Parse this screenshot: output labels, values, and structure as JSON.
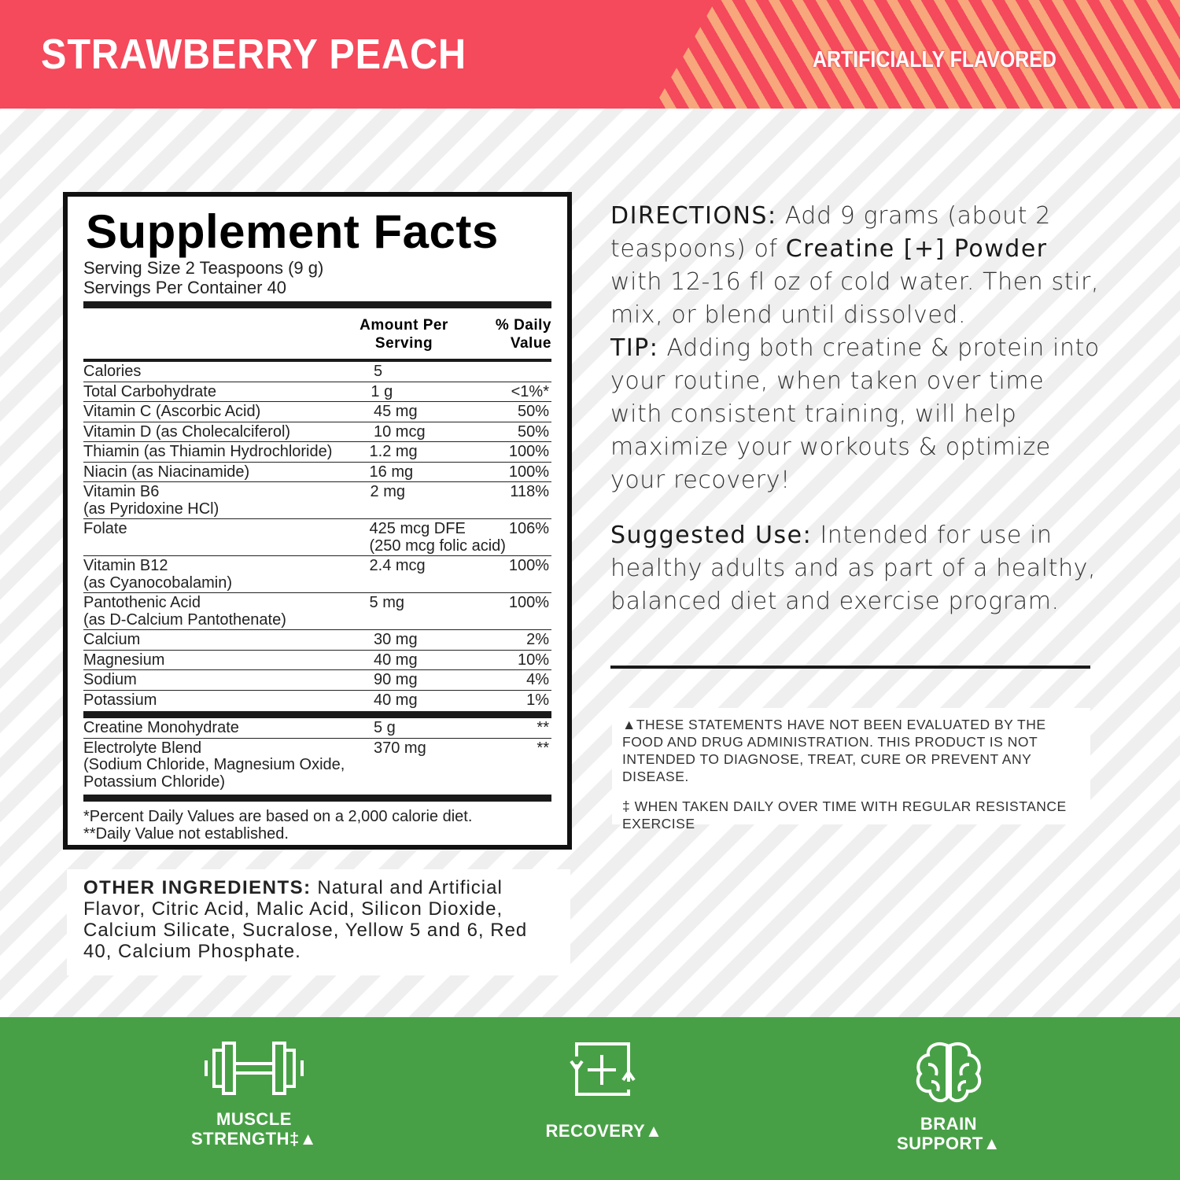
{
  "header": {
    "flavor": "STRAWBERRY PEACH",
    "flavor_note": "ARTIFICIALLY FLAVORED",
    "colors": {
      "red": "#f5495c",
      "peach": "#f7a77b"
    }
  },
  "facts": {
    "title": "Supplement Facts",
    "serving_size": "Serving Size 2 Teaspoons (9 g)",
    "servings_per_container": "Servings Per Container 40",
    "col_amount": "Amount Per Serving",
    "col_dv": "% Daily Value",
    "rows": [
      {
        "name": "Calories",
        "amount": "5",
        "dv": ""
      },
      {
        "name": "Total Carbohydrate",
        "amount": "1 g",
        "dv": "<1%*"
      },
      {
        "name": "Vitamin C (Ascorbic Acid)",
        "amount": "45 mg",
        "dv": "50%"
      },
      {
        "name": "Vitamin D (as Cholecalciferol)",
        "amount": "10 mcg",
        "dv": "50%"
      },
      {
        "name": "Thiamin (as Thiamin Hydrochloride)",
        "amount": "1.2 mg",
        "dv": "100%"
      },
      {
        "name": "Niacin (as Niacinamide)",
        "amount": "16 mg",
        "dv": "100%"
      },
      {
        "name": "Vitamin B6",
        "name2": "(as Pyridoxine HCl)",
        "amount": "2 mg",
        "dv": "118%"
      },
      {
        "name": "Folate",
        "amount": "425 mcg DFE",
        "amount2": "(250 mcg folic acid)",
        "dv": "106%"
      },
      {
        "name": "Vitamin B12",
        "name2": "(as Cyanocobalamin)",
        "amount": "2.4 mcg",
        "dv": "100%"
      },
      {
        "name": "Pantothenic Acid",
        "name2": "(as D-Calcium Pantothenate)",
        "amount": "5 mg",
        "dv": "100%"
      },
      {
        "name": "Calcium",
        "amount": "30 mg",
        "dv": "2%"
      },
      {
        "name": "Magnesium",
        "amount": "40 mg",
        "dv": "10%"
      },
      {
        "name": "Sodium",
        "amount": "90 mg",
        "dv": "4%"
      },
      {
        "name": "Potassium",
        "amount": "40 mg",
        "dv": "1%"
      }
    ],
    "rows2": [
      {
        "name": "Creatine Monohydrate",
        "amount": "5 g",
        "dv": "**"
      },
      {
        "name": "Electrolyte Blend",
        "name2": "(Sodium Chloride, Magnesium Oxide,",
        "name3": "Potassium Chloride)",
        "amount": "370 mg",
        "dv": "**"
      }
    ],
    "footnote1": "*Percent Daily Values are based on a 2,000 calorie diet.",
    "footnote2": "**Daily Value not established."
  },
  "other_ingredients": {
    "label": "OTHER INGREDIENTS:",
    "text": " Natural and Artificial Flavor, Citric Acid, Malic Acid, Silicon Dioxide, Calcium Silicate, Sucralose, Yellow 5 and 6, Red 40, Calcium Phosphate."
  },
  "directions": {
    "label": "DIRECTIONS:",
    "t1": " Add 9 grams (about 2 teaspoons) of ",
    "product": "Creatine [+] Powder",
    "t2": " with 12-16 fl oz of cold water. Then stir, mix, or blend until dissolved.",
    "tip_label": "TIP:",
    "tip": " Adding both creatine & protein into your routine, when taken over time with consistent training, will help maximize your workouts & optimize your recovery!"
  },
  "suggested_use": {
    "label": "Suggested Use:",
    "text": " Intended for use in healthy adults and as part of a healthy, balanced diet and exercise program."
  },
  "disclaimer": {
    "fda": "▲THESE STATEMENTS HAVE NOT BEEN EVALUATED BY THE FOOD AND DRUG ADMINISTRATION. THIS PRODUCT IS NOT INTENDED TO DIAGNOSE, TREAT, CURE OR PREVENT ANY DISEASE.",
    "resistance": "‡ WHEN TAKEN DAILY OVER TIME WITH REGULAR RESISTANCE EXERCISE"
  },
  "benefits": {
    "color": "#48a046",
    "items": [
      {
        "icon": "dumbbell-icon",
        "line1": "MUSCLE",
        "line2": "STRENGTH‡▲"
      },
      {
        "icon": "recovery-icon",
        "line1": "RECOVERY▲",
        "line2": ""
      },
      {
        "icon": "brain-icon",
        "line1": "BRAIN",
        "line2": "SUPPORT▲"
      }
    ]
  }
}
